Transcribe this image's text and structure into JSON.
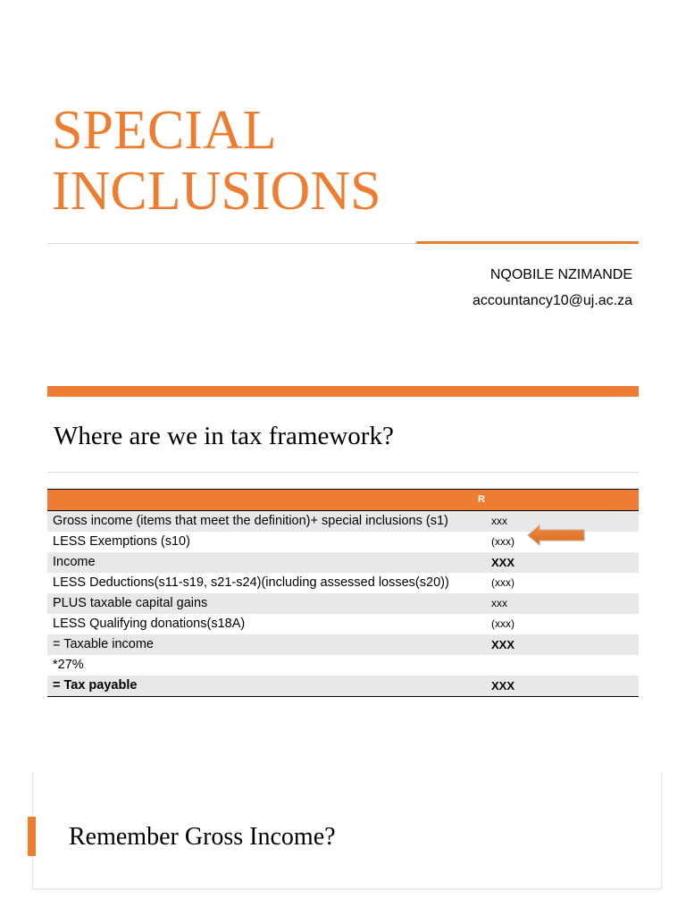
{
  "slide1": {
    "title_lines": [
      "SPECIAL",
      "INCLUSIONS"
    ],
    "author": "NQOBILE NZIMANDE",
    "email": "accountancy10@uj.ac.za"
  },
  "slide2": {
    "title": "Where are we in tax framework?",
    "table": {
      "header_amount": "R",
      "rows": [
        {
          "label": "Gross income (items that meet the definition)+ special inclusions (s1)",
          "amount": "xxx"
        },
        {
          "label": "LESS Exemptions (s10)",
          "amount": "(xxx)"
        },
        {
          "label": "Income",
          "amount": "XXX"
        },
        {
          "label": "LESS Deductions(s11-s19, s21-s24)(including assessed losses(s20))",
          "amount": "(xxx)"
        },
        {
          "label": "PLUS taxable capital gains",
          "amount": "xxx"
        },
        {
          "label": "LESS Qualifying donations(s18A)",
          "amount": "(xxx)"
        },
        {
          "label": "= Taxable income",
          "amount": "XXX"
        },
        {
          "label": "*27%",
          "amount": ""
        },
        {
          "label": "= Tax payable",
          "amount": "XXX"
        }
      ]
    },
    "arrow_icon": "left-arrow-icon",
    "accent_color": "#ec7d31"
  },
  "slide3": {
    "title": "Remember Gross Income?"
  }
}
